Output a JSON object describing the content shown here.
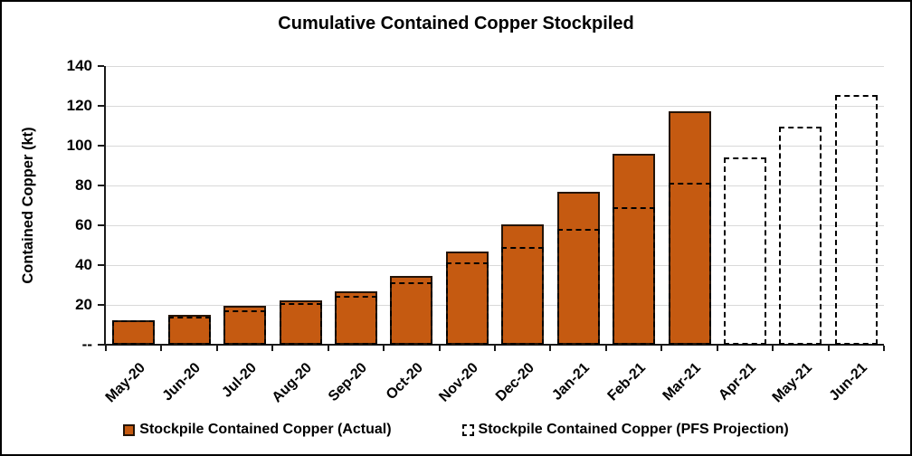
{
  "chart_data": {
    "type": "bar",
    "title": "Cumulative Contained Copper Stockpiled",
    "ylabel": "Contained Copper (kt)",
    "xlabel": "",
    "ylim": [
      0,
      140
    ],
    "ytick_interval": 20,
    "ytick_labels": [
      "--",
      "20",
      "40",
      "60",
      "80",
      "100",
      "120",
      "140"
    ],
    "grid": true,
    "legend_position": "bottom",
    "categories": [
      "May-20",
      "Jun-20",
      "Jul-20",
      "Aug-20",
      "Sep-20",
      "Oct-20",
      "Nov-20",
      "Dec-20",
      "Jan-21",
      "Feb-21",
      "Mar-21",
      "Apr-21",
      "May-21",
      "Jun-21"
    ],
    "series": [
      {
        "name": "Stockpile Contained Copper (Actual)",
        "style": "solid-bar",
        "values": [
          12.2,
          15,
          19.5,
          22.5,
          27,
          34.5,
          47,
          60.5,
          77,
          96,
          117.5,
          null,
          null,
          null
        ]
      },
      {
        "name": "Stockpile Contained Copper (PFS Projection)",
        "style": "dashed-outline-bar",
        "values": [
          12.4,
          14,
          17.5,
          21,
          24.5,
          31.5,
          41.5,
          49,
          58,
          69,
          81.5,
          94,
          109.5,
          125.5
        ]
      }
    ],
    "colors": {
      "actual_fill": "#C55A11",
      "actual_border": "#241407",
      "projection_outline": "#000000",
      "gridline": "#D9D9D9",
      "axis": "#1a1a1a"
    }
  }
}
